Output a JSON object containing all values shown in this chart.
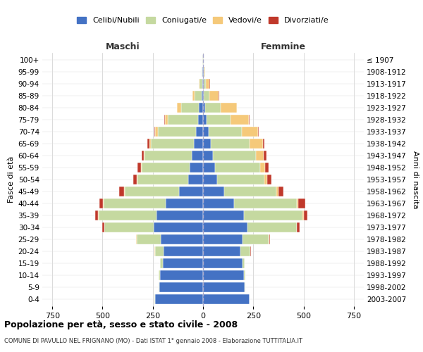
{
  "age_groups": [
    "0-4",
    "5-9",
    "10-14",
    "15-19",
    "20-24",
    "25-29",
    "30-34",
    "35-39",
    "40-44",
    "45-49",
    "50-54",
    "55-59",
    "60-64",
    "65-69",
    "70-74",
    "75-79",
    "80-84",
    "85-89",
    "90-94",
    "95-99",
    "100+"
  ],
  "birth_years": [
    "2003-2007",
    "1998-2002",
    "1993-1997",
    "1988-1992",
    "1983-1987",
    "1978-1982",
    "1973-1977",
    "1968-1972",
    "1963-1967",
    "1958-1962",
    "1953-1957",
    "1948-1952",
    "1943-1947",
    "1938-1942",
    "1933-1937",
    "1928-1932",
    "1923-1927",
    "1918-1922",
    "1913-1917",
    "1908-1912",
    "≤ 1907"
  ],
  "maschi": {
    "celibi": [
      240,
      218,
      215,
      200,
      195,
      210,
      245,
      230,
      185,
      120,
      75,
      65,
      55,
      45,
      35,
      25,
      20,
      8,
      4,
      2,
      1
    ],
    "coniugati": [
      2,
      2,
      5,
      15,
      45,
      120,
      245,
      290,
      310,
      270,
      250,
      240,
      235,
      215,
      190,
      150,
      90,
      35,
      15,
      5,
      1
    ],
    "vedovi": [
      0,
      0,
      0,
      0,
      1,
      2,
      2,
      4,
      4,
      4,
      4,
      5,
      5,
      8,
      12,
      15,
      20,
      10,
      3,
      1,
      0
    ],
    "divorziati": [
      0,
      0,
      0,
      0,
      1,
      2,
      8,
      12,
      18,
      22,
      18,
      18,
      12,
      8,
      5,
      2,
      0,
      0,
      0,
      0,
      0
    ]
  },
  "femmine": {
    "nubili": [
      230,
      208,
      205,
      195,
      185,
      198,
      220,
      205,
      155,
      105,
      70,
      60,
      48,
      38,
      28,
      18,
      12,
      5,
      3,
      2,
      1
    ],
    "coniugate": [
      1,
      2,
      4,
      12,
      50,
      130,
      245,
      290,
      310,
      260,
      235,
      225,
      215,
      195,
      165,
      120,
      75,
      28,
      12,
      4,
      1
    ],
    "vedove": [
      0,
      0,
      0,
      0,
      1,
      2,
      3,
      5,
      8,
      12,
      15,
      25,
      40,
      65,
      80,
      90,
      80,
      45,
      18,
      5,
      1
    ],
    "divorziate": [
      0,
      0,
      0,
      0,
      1,
      3,
      12,
      18,
      35,
      22,
      20,
      18,
      12,
      8,
      5,
      3,
      2,
      1,
      1,
      0,
      0
    ]
  },
  "colors": {
    "celibi": "#4472c4",
    "coniugati": "#c5d9a0",
    "vedovi": "#f5c97a",
    "divorziati": "#c0392b"
  },
  "legend_labels": [
    "Celibi/Nubili",
    "Coniugati/e",
    "Vedovi/e",
    "Divorziati/e"
  ],
  "title": "Popolazione per età, sesso e stato civile - 2008",
  "subtitle": "COMUNE DI PAVULLO NEL FRIGNANO (MO) - Dati ISTAT 1° gennaio 2008 - Elaborazione TUTTITALIA.IT",
  "xlabel_left": "Maschi",
  "xlabel_right": "Femmine",
  "ylabel_left": "Fasce di età",
  "ylabel_right": "Anni di nascita",
  "xlim": 800,
  "bg_color": "#ffffff",
  "grid_color": "#cccccc"
}
